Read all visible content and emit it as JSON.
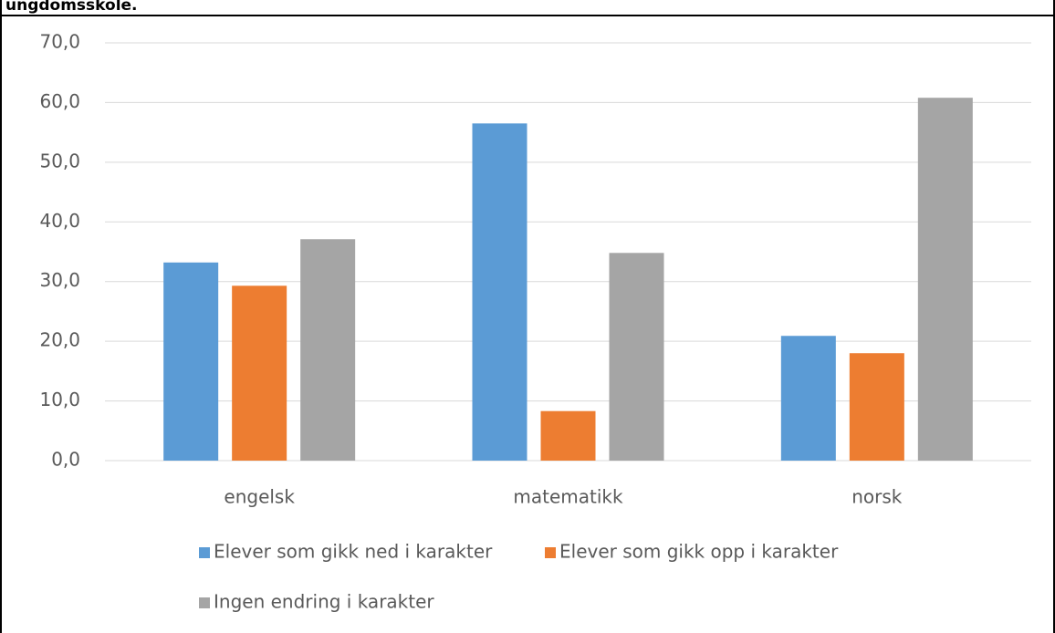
{
  "chart_data": {
    "type": "bar",
    "title": "ungdomsskole.",
    "categories": [
      "engelsk",
      "matematikk",
      "norsk"
    ],
    "series": [
      {
        "name": "Elever som gikk ned i karakter",
        "color": "#5b9bd5",
        "values": [
          33.2,
          56.5,
          20.9
        ]
      },
      {
        "name": "Elever som gikk opp i karakter",
        "color": "#ed7d31",
        "values": [
          29.3,
          8.3,
          18.0
        ]
      },
      {
        "name": "Ingen endring i karakter",
        "color": "#a5a5a5",
        "values": [
          37.1,
          34.8,
          60.8
        ]
      }
    ],
    "ylim": [
      0,
      70
    ],
    "yticks": [
      {
        "value": 0,
        "label": "0,0"
      },
      {
        "value": 10,
        "label": "10,0"
      },
      {
        "value": 20,
        "label": "20,0"
      },
      {
        "value": 30,
        "label": "30,0"
      },
      {
        "value": 40,
        "label": "40,0"
      },
      {
        "value": 50,
        "label": "50,0"
      },
      {
        "value": 60,
        "label": "60,0"
      },
      {
        "value": 70,
        "label": "70,0"
      }
    ],
    "grid": true,
    "legend": "bottom"
  }
}
